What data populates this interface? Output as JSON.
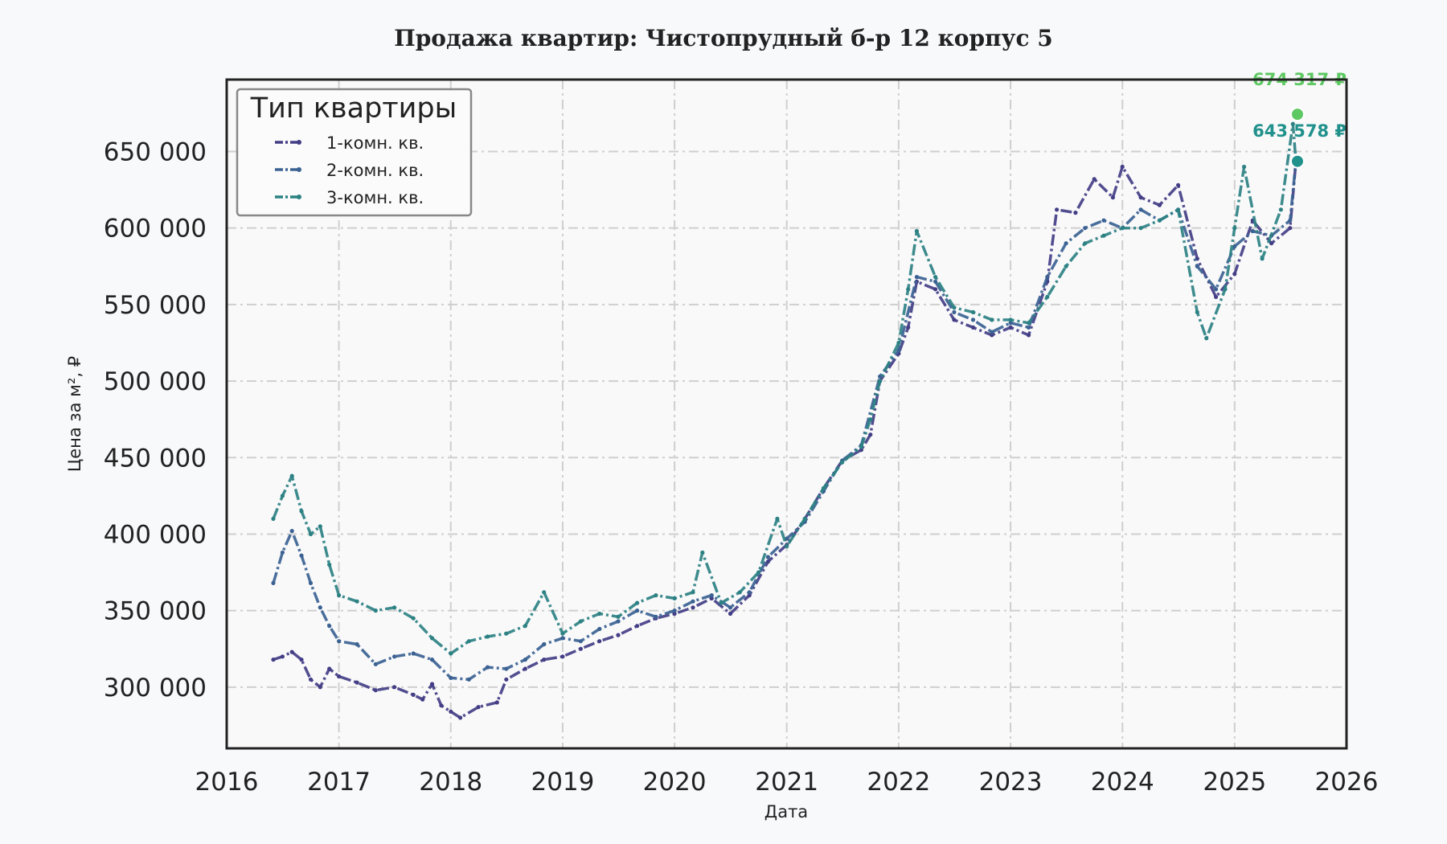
{
  "chart_data": {
    "type": "line",
    "title": "Продажа квартир: Чистопрудный б-р 12 корпус 5",
    "xlabel": "Дата",
    "ylabel": "Цена за м², ₽",
    "xlim": [
      "2016-01-01",
      "2026-01-01"
    ],
    "ylim": [
      260000,
      697000
    ],
    "x_ticks": [
      {
        "value": "2016-01-01",
        "label": "2016"
      },
      {
        "value": "2017-01-01",
        "label": "2017"
      },
      {
        "value": "2018-01-01",
        "label": "2018"
      },
      {
        "value": "2019-01-01",
        "label": "2019"
      },
      {
        "value": "2020-01-01",
        "label": "2020"
      },
      {
        "value": "2021-01-01",
        "label": "2021"
      },
      {
        "value": "2022-01-01",
        "label": "2022"
      },
      {
        "value": "2023-01-01",
        "label": "2023"
      },
      {
        "value": "2024-01-01",
        "label": "2024"
      },
      {
        "value": "2025-01-01",
        "label": "2025"
      },
      {
        "value": "2026-01-01",
        "label": "2026"
      }
    ],
    "y_ticks": [
      {
        "value": 300000,
        "label": "300 000"
      },
      {
        "value": 350000,
        "label": "350 000"
      },
      {
        "value": 400000,
        "label": "400 000"
      },
      {
        "value": 450000,
        "label": "450 000"
      },
      {
        "value": 500000,
        "label": "500 000"
      },
      {
        "value": 550000,
        "label": "550 000"
      },
      {
        "value": 600000,
        "label": "600 000"
      },
      {
        "value": 650000,
        "label": "650 000"
      }
    ],
    "grid": true,
    "legend": {
      "title": "Тип квартиры",
      "position": "top-left"
    },
    "series": [
      {
        "name": "1-комн. кв.",
        "color": "#433e85",
        "points": [
          [
            "2016-06-01",
            318000
          ],
          [
            "2016-07-01",
            320000
          ],
          [
            "2016-08-01",
            323000
          ],
          [
            "2016-09-01",
            318000
          ],
          [
            "2016-10-01",
            305000
          ],
          [
            "2016-11-01",
            300000
          ],
          [
            "2016-12-01",
            312000
          ],
          [
            "2017-01-01",
            307000
          ],
          [
            "2017-03-01",
            303000
          ],
          [
            "2017-05-01",
            298000
          ],
          [
            "2017-07-01",
            300000
          ],
          [
            "2017-09-01",
            295000
          ],
          [
            "2017-10-01",
            292000
          ],
          [
            "2017-11-01",
            302000
          ],
          [
            "2017-12-01",
            288000
          ],
          [
            "2018-01-01",
            284000
          ],
          [
            "2018-02-01",
            280000
          ],
          [
            "2018-04-01",
            287000
          ],
          [
            "2018-06-01",
            290000
          ],
          [
            "2018-07-01",
            305000
          ],
          [
            "2018-09-01",
            312000
          ],
          [
            "2018-11-01",
            318000
          ],
          [
            "2019-01-01",
            320000
          ],
          [
            "2019-03-01",
            325000
          ],
          [
            "2019-05-01",
            330000
          ],
          [
            "2019-07-01",
            334000
          ],
          [
            "2019-09-01",
            340000
          ],
          [
            "2019-11-01",
            345000
          ],
          [
            "2020-01-01",
            348000
          ],
          [
            "2020-03-01",
            352000
          ],
          [
            "2020-05-01",
            358000
          ],
          [
            "2020-07-01",
            348000
          ],
          [
            "2020-09-01",
            360000
          ],
          [
            "2020-11-01",
            382000
          ],
          [
            "2021-01-01",
            393000
          ],
          [
            "2021-03-01",
            410000
          ],
          [
            "2021-05-01",
            430000
          ],
          [
            "2021-07-01",
            448000
          ],
          [
            "2021-09-01",
            455000
          ],
          [
            "2021-10-01",
            465000
          ],
          [
            "2021-11-01",
            500000
          ],
          [
            "2022-01-01",
            518000
          ],
          [
            "2022-02-01",
            535000
          ],
          [
            "2022-03-01",
            565000
          ],
          [
            "2022-05-01",
            560000
          ],
          [
            "2022-07-01",
            540000
          ],
          [
            "2022-09-01",
            535000
          ],
          [
            "2022-11-01",
            530000
          ],
          [
            "2023-01-01",
            535000
          ],
          [
            "2023-03-01",
            530000
          ],
          [
            "2023-05-01",
            565000
          ],
          [
            "2023-06-01",
            612000
          ],
          [
            "2023-08-01",
            610000
          ],
          [
            "2023-10-01",
            632000
          ],
          [
            "2023-12-01",
            620000
          ],
          [
            "2024-01-01",
            640000
          ],
          [
            "2024-03-01",
            620000
          ],
          [
            "2024-05-01",
            615000
          ],
          [
            "2024-07-01",
            628000
          ],
          [
            "2024-09-01",
            580000
          ],
          [
            "2024-11-01",
            555000
          ],
          [
            "2025-01-01",
            570000
          ],
          [
            "2025-03-01",
            605000
          ],
          [
            "2025-05-01",
            590000
          ],
          [
            "2025-07-01",
            600000
          ],
          [
            "2025-07-20",
            643578
          ]
        ]
      },
      {
        "name": "2-комн. кв.",
        "color": "#3b6292",
        "points": [
          [
            "2016-06-01",
            368000
          ],
          [
            "2016-07-01",
            388000
          ],
          [
            "2016-08-01",
            402000
          ],
          [
            "2016-09-01",
            386000
          ],
          [
            "2016-10-01",
            368000
          ],
          [
            "2016-11-01",
            352000
          ],
          [
            "2016-12-01",
            340000
          ],
          [
            "2017-01-01",
            330000
          ],
          [
            "2017-03-01",
            328000
          ],
          [
            "2017-05-01",
            315000
          ],
          [
            "2017-07-01",
            320000
          ],
          [
            "2017-09-01",
            322000
          ],
          [
            "2017-11-01",
            318000
          ],
          [
            "2018-01-01",
            306000
          ],
          [
            "2018-03-01",
            305000
          ],
          [
            "2018-05-01",
            313000
          ],
          [
            "2018-07-01",
            312000
          ],
          [
            "2018-09-01",
            318000
          ],
          [
            "2018-11-01",
            328000
          ],
          [
            "2019-01-01",
            332000
          ],
          [
            "2019-03-01",
            330000
          ],
          [
            "2019-05-01",
            338000
          ],
          [
            "2019-07-01",
            343000
          ],
          [
            "2019-09-01",
            350000
          ],
          [
            "2019-11-01",
            346000
          ],
          [
            "2020-01-01",
            350000
          ],
          [
            "2020-03-01",
            356000
          ],
          [
            "2020-05-01",
            360000
          ],
          [
            "2020-07-01",
            352000
          ],
          [
            "2020-09-01",
            362000
          ],
          [
            "2020-11-01",
            385000
          ],
          [
            "2021-01-01",
            397000
          ],
          [
            "2021-03-01",
            408000
          ],
          [
            "2021-05-01",
            428000
          ],
          [
            "2021-07-01",
            448000
          ],
          [
            "2021-09-01",
            458000
          ],
          [
            "2021-11-01",
            503000
          ],
          [
            "2022-01-01",
            520000
          ],
          [
            "2022-03-01",
            568000
          ],
          [
            "2022-05-01",
            565000
          ],
          [
            "2022-07-01",
            545000
          ],
          [
            "2022-09-01",
            540000
          ],
          [
            "2022-11-01",
            532000
          ],
          [
            "2023-01-01",
            538000
          ],
          [
            "2023-03-01",
            535000
          ],
          [
            "2023-05-01",
            568000
          ],
          [
            "2023-07-01",
            590000
          ],
          [
            "2023-09-01",
            600000
          ],
          [
            "2023-11-01",
            605000
          ],
          [
            "2024-01-01",
            600000
          ],
          [
            "2024-03-01",
            612000
          ],
          [
            "2024-05-01",
            605000
          ],
          [
            "2024-07-01",
            612000
          ],
          [
            "2024-09-01",
            575000
          ],
          [
            "2024-11-01",
            560000
          ],
          [
            "2025-01-01",
            588000
          ],
          [
            "2025-03-01",
            598000
          ],
          [
            "2025-05-01",
            595000
          ],
          [
            "2025-07-01",
            605000
          ],
          [
            "2025-07-20",
            643578
          ]
        ]
      },
      {
        "name": "3-комн. кв.",
        "color": "#2c8183",
        "points": [
          [
            "2016-06-01",
            410000
          ],
          [
            "2016-07-01",
            425000
          ],
          [
            "2016-08-01",
            438000
          ],
          [
            "2016-09-01",
            415000
          ],
          [
            "2016-10-01",
            400000
          ],
          [
            "2016-11-01",
            405000
          ],
          [
            "2016-12-01",
            380000
          ],
          [
            "2017-01-01",
            360000
          ],
          [
            "2017-03-01",
            356000
          ],
          [
            "2017-05-01",
            350000
          ],
          [
            "2017-07-01",
            352000
          ],
          [
            "2017-09-01",
            345000
          ],
          [
            "2017-11-01",
            332000
          ],
          [
            "2018-01-01",
            322000
          ],
          [
            "2018-03-01",
            330000
          ],
          [
            "2018-05-01",
            333000
          ],
          [
            "2018-07-01",
            335000
          ],
          [
            "2018-09-01",
            340000
          ],
          [
            "2018-11-01",
            362000
          ],
          [
            "2019-01-01",
            335000
          ],
          [
            "2019-03-01",
            343000
          ],
          [
            "2019-05-01",
            348000
          ],
          [
            "2019-07-01",
            346000
          ],
          [
            "2019-09-01",
            355000
          ],
          [
            "2019-11-01",
            360000
          ],
          [
            "2020-01-01",
            358000
          ],
          [
            "2020-03-01",
            362000
          ],
          [
            "2020-04-01",
            388000
          ],
          [
            "2020-06-01",
            355000
          ],
          [
            "2020-08-01",
            362000
          ],
          [
            "2020-10-01",
            375000
          ],
          [
            "2020-12-01",
            410000
          ],
          [
            "2021-01-01",
            392000
          ],
          [
            "2021-03-01",
            410000
          ],
          [
            "2021-05-01",
            430000
          ],
          [
            "2021-07-01",
            447000
          ],
          [
            "2021-09-01",
            457000
          ],
          [
            "2021-10-01",
            475000
          ],
          [
            "2021-11-01",
            500000
          ],
          [
            "2022-01-01",
            525000
          ],
          [
            "2022-02-01",
            560000
          ],
          [
            "2022-03-01",
            598000
          ],
          [
            "2022-05-01",
            568000
          ],
          [
            "2022-07-01",
            548000
          ],
          [
            "2022-09-01",
            545000
          ],
          [
            "2022-11-01",
            540000
          ],
          [
            "2023-01-01",
            540000
          ],
          [
            "2023-03-01",
            538000
          ],
          [
            "2023-05-01",
            555000
          ],
          [
            "2023-07-01",
            575000
          ],
          [
            "2023-09-01",
            590000
          ],
          [
            "2023-11-01",
            595000
          ],
          [
            "2024-01-01",
            600000
          ],
          [
            "2024-03-01",
            600000
          ],
          [
            "2024-05-01",
            605000
          ],
          [
            "2024-07-01",
            612000
          ],
          [
            "2024-09-01",
            545000
          ],
          [
            "2024-10-01",
            528000
          ],
          [
            "2024-12-01",
            560000
          ],
          [
            "2025-01-01",
            600000
          ],
          [
            "2025-02-01",
            640000
          ],
          [
            "2025-04-01",
            580000
          ],
          [
            "2025-06-01",
            612000
          ],
          [
            "2025-07-10",
            668000
          ],
          [
            "2025-07-20",
            643578
          ]
        ]
      }
    ],
    "end_markers": [
      {
        "date": "2025-07-25",
        "value": 674317,
        "label": "674 317 ₽",
        "color": "#5ec962"
      },
      {
        "date": "2025-07-25",
        "value": 643578,
        "label": "643 578 ₽",
        "color": "#21918c"
      }
    ]
  }
}
